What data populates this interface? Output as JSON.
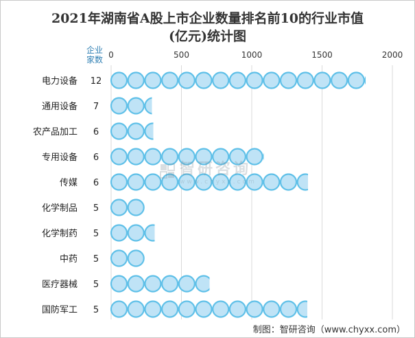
{
  "title_line1": "2021年湖南省A股上市企业数量排名前10的行业市值",
  "title_line2": "(亿元)统计图",
  "count_header": "企业\n家数",
  "footer": "制图：智研咨询（www.chyxx.com）",
  "watermark": {
    "main": "智研咨询",
    "sub": "www.chyxx.com"
  },
  "colors": {
    "bubble_fill": "#bfe3f6",
    "bubble_stroke": "#5fc0e8",
    "grid": "#d9d9d9",
    "count_header": "#2f7fb3"
  },
  "chart_data": {
    "type": "bar",
    "orientation": "horizontal",
    "categories": [
      "电力设备",
      "通用设备",
      "农产品加工",
      "专用设备",
      "传媒",
      "化学制品",
      "化学制药",
      "中药",
      "医疗器械",
      "国防军工"
    ],
    "company_counts": [
      "12",
      "7",
      "6",
      "6",
      "6",
      "5",
      "5",
      "5",
      "5",
      "5"
    ],
    "values": [
      1810,
      290,
      300,
      1085,
      1400,
      240,
      310,
      240,
      700,
      1395
    ],
    "xlim": [
      0,
      2000
    ],
    "x_ticks": [
      "0",
      "500",
      "1000",
      "1500",
      "2000"
    ],
    "grid": true
  }
}
